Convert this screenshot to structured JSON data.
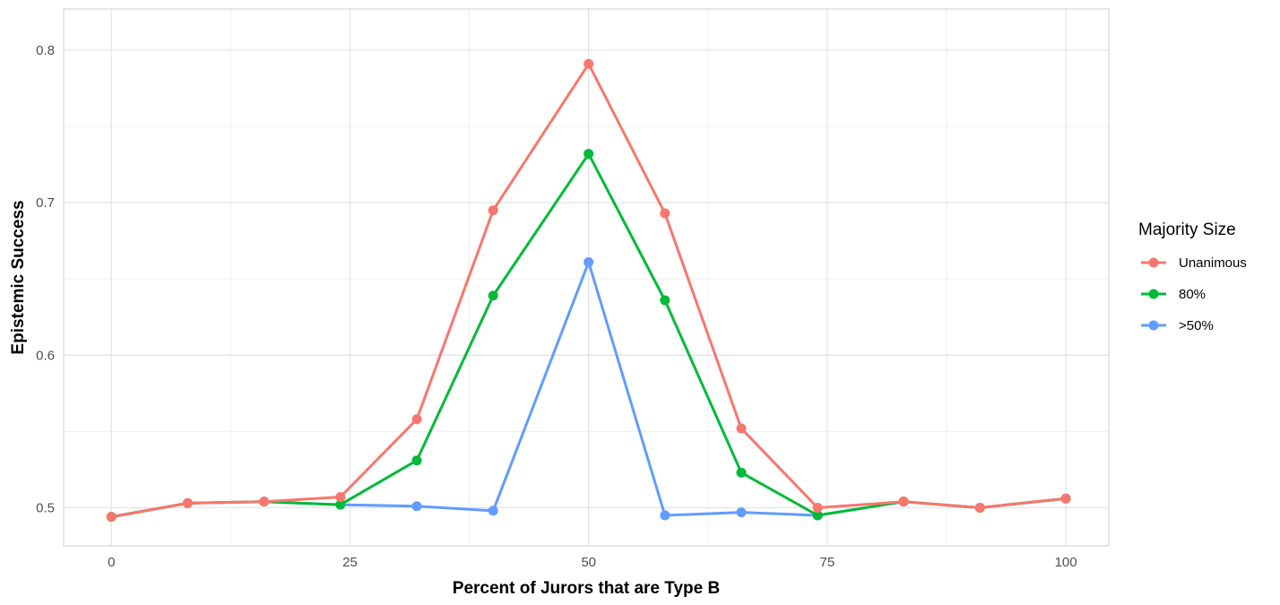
{
  "chart_data": {
    "type": "line",
    "title": "",
    "xlabel": "Percent of Jurors that are Type B",
    "ylabel": "Epistemic Success",
    "xlim": [
      -5,
      104.5
    ],
    "ylim": [
      0.475,
      0.827
    ],
    "x_ticks": [
      0,
      25,
      50,
      75,
      100
    ],
    "x_tick_labels": [
      "0",
      "25",
      "50",
      "75",
      "100"
    ],
    "y_ticks": [
      0.5,
      0.6,
      0.7,
      0.8
    ],
    "y_tick_labels": [
      "0.5",
      "0.6",
      "0.7",
      "0.8"
    ],
    "grid": true,
    "legend": {
      "title": "Majority Size",
      "position": "right"
    },
    "x": [
      0,
      8,
      16,
      24,
      32,
      40,
      50,
      58,
      66,
      74,
      83,
      91,
      100
    ],
    "series": [
      {
        "name": "Unanimous",
        "color": "#F8766D",
        "values": [
          0.494,
          0.503,
          0.504,
          0.507,
          0.558,
          0.695,
          0.791,
          0.693,
          0.552,
          0.5,
          0.504,
          0.5,
          0.506
        ]
      },
      {
        "name": "80%",
        "color": "#00BA38",
        "values": [
          0.494,
          0.503,
          0.504,
          0.502,
          0.531,
          0.639,
          0.732,
          0.636,
          0.523,
          0.495,
          0.504,
          0.5,
          0.506
        ]
      },
      {
        "name": ">50%",
        "color": "#619CFF",
        "values": [
          0.494,
          0.503,
          0.504,
          0.502,
          0.501,
          0.498,
          0.661,
          0.495,
          0.497,
          0.495,
          0.504,
          0.5,
          0.506
        ]
      }
    ]
  }
}
